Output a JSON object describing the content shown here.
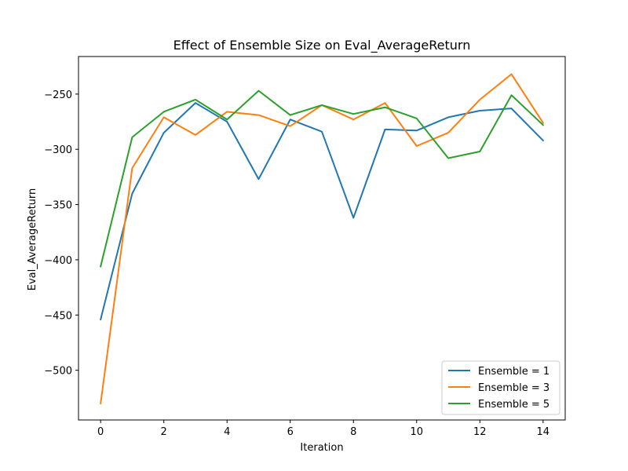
{
  "chart_data": {
    "type": "line",
    "title": "Effect of Ensemble Size on Eval_AverageReturn",
    "xlabel": "Iteration",
    "ylabel": "Eval_AverageReturn",
    "x": [
      0,
      1,
      2,
      3,
      4,
      5,
      6,
      7,
      8,
      9,
      10,
      11,
      12,
      13,
      14
    ],
    "xlim": [
      -0.7,
      14.7
    ],
    "ylim": [
      -545,
      -216
    ],
    "xticks": [
      0,
      2,
      4,
      6,
      8,
      10,
      12,
      14
    ],
    "yticks": [
      -500,
      -450,
      -400,
      -350,
      -300,
      -250
    ],
    "grid": false,
    "legend_position": "lower-right",
    "series": [
      {
        "name": "Ensemble = 1",
        "color": "#1f77b4",
        "values": [
          -454,
          -340,
          -285,
          -258,
          -275,
          -327,
          -273,
          -284,
          -362,
          -282,
          -283,
          -271,
          -265,
          -263,
          -292
        ]
      },
      {
        "name": "Ensemble = 3",
        "color": "#ff7f0e",
        "values": [
          -530,
          -317,
          -271,
          -287,
          -266,
          -269,
          -279,
          -260,
          -273,
          -258,
          -297,
          -285,
          -255,
          -232,
          -276
        ]
      },
      {
        "name": "Ensemble = 5",
        "color": "#2ca02c",
        "values": [
          -406,
          -289,
          -266,
          -255,
          -273,
          -247,
          -269,
          -260,
          -268,
          -262,
          -272,
          -308,
          -302,
          -251,
          -278
        ]
      }
    ]
  }
}
